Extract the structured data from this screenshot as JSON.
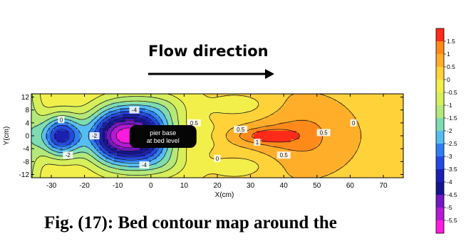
{
  "annotation": {
    "flow_label": "Flow direction",
    "pier_label_line1": "pier base",
    "pier_label_line2": "at bed level"
  },
  "caption": "Fig. (17): Bed contour map around the",
  "chart_data": {
    "type": "heatmap",
    "xlabel": "X(cm)",
    "ylabel": "Y(cm)",
    "xlim": [
      -36,
      76
    ],
    "ylim": [
      -13,
      13
    ],
    "x_ticks": [
      -30,
      -20,
      -10,
      0,
      10,
      20,
      30,
      40,
      50,
      60,
      70
    ],
    "y_ticks": [
      12,
      8,
      4,
      0,
      -4,
      -8,
      -12
    ],
    "colorbar": {
      "levels": [
        "1.5",
        "1",
        "0.5",
        "0",
        "-0.5",
        "-1",
        "-1.5",
        "-2",
        "-2.5",
        "-3",
        "-3.5",
        "-4",
        "-4.5",
        "-5",
        "-5.5"
      ],
      "colors": [
        "#ff2a1a",
        "#ff8a1a",
        "#ffae2a",
        "#ffd23a",
        "#f2ef4a",
        "#d6ef5a",
        "#b4e87a",
        "#7edcb2",
        "#56bdf2",
        "#2e7ef2",
        "#2448e2",
        "#1c20b2",
        "#151490",
        "#7418c2",
        "#b41ad2",
        "#ff1adf"
      ]
    },
    "contour_labels": [
      {
        "text": "0",
        "x": -27,
        "y": 5
      },
      {
        "text": "-2",
        "x": -17,
        "y": 0
      },
      {
        "text": "-4",
        "x": -5,
        "y": 8
      },
      {
        "text": "-4",
        "x": -2,
        "y": -9
      },
      {
        "text": "-2",
        "x": -25,
        "y": -6
      },
      {
        "text": "0.5",
        "x": 13,
        "y": 4
      },
      {
        "text": "0.5",
        "x": 27,
        "y": 2
      },
      {
        "text": "1",
        "x": 32,
        "y": -2
      },
      {
        "text": "0.5",
        "x": 40,
        "y": -6
      },
      {
        "text": "0",
        "x": 20,
        "y": -7
      },
      {
        "text": "0.5",
        "x": 52,
        "y": 1
      },
      {
        "text": "0",
        "x": 61,
        "y": 4
      }
    ],
    "pier_position": {
      "x": 0,
      "y": 0
    }
  }
}
